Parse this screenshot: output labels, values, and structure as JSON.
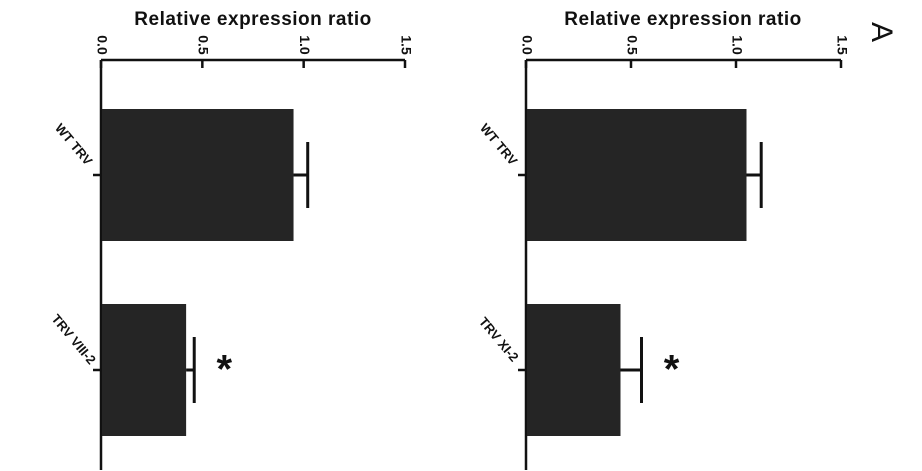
{
  "panel_label": "A",
  "chart_data": [
    {
      "type": "bar",
      "ylabel": "Relative expression ratio",
      "ylim": [
        0,
        1.5
      ],
      "yticks": [
        "0.0",
        "0.5",
        "1.0",
        "1.5"
      ],
      "categories": [
        "WT TRV",
        "TRV XI-2"
      ],
      "values": [
        1.05,
        0.45
      ],
      "errors": [
        0.07,
        0.1
      ],
      "significance": [
        "",
        "*"
      ],
      "orientation": "rotated 90° clockwise"
    },
    {
      "type": "bar",
      "ylabel": "Relative expression ratio",
      "ylim": [
        0,
        1.5
      ],
      "yticks": [
        "0.0",
        "0.5",
        "1.0",
        "1.5"
      ],
      "categories": [
        "WT TRV",
        "TRV VIII-2"
      ],
      "values": [
        0.95,
        0.42
      ],
      "errors": [
        0.07,
        0.04
      ],
      "significance": [
        "",
        "*"
      ],
      "orientation": "rotated 90° clockwise"
    }
  ]
}
